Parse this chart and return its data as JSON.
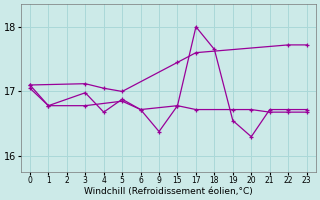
{
  "xlabel": "Windchill (Refroidissement éolien,°C)",
  "bg_color": "#cceae8",
  "line_color": "#990099",
  "grid_color": "#aad8d8",
  "yticks": [
    16,
    17,
    18
  ],
  "xtick_labels": [
    "0",
    "1",
    "2",
    "3",
    "4",
    "5",
    "6",
    "9",
    "15",
    "17",
    "18",
    "19",
    "20",
    "21",
    "22",
    "23"
  ],
  "ylim": [
    15.75,
    18.35
  ],
  "series1": {
    "xi": [
      0,
      1,
      3,
      4,
      5,
      6,
      9,
      15,
      17,
      18,
      19,
      20,
      21,
      22,
      23
    ],
    "y": [
      17.1,
      16.78,
      16.98,
      16.68,
      16.88,
      16.72,
      16.38,
      16.78,
      18.0,
      17.65,
      16.55,
      16.3,
      16.72,
      16.72,
      16.72
    ]
  },
  "series2": {
    "xi": [
      0,
      3,
      4,
      5,
      15,
      17,
      22,
      23
    ],
    "y": [
      17.1,
      17.12,
      17.05,
      17.0,
      17.45,
      17.6,
      17.72,
      17.72
    ]
  },
  "series3": {
    "xi": [
      0,
      1,
      3,
      5,
      6,
      15,
      17,
      19,
      20,
      21,
      22,
      23
    ],
    "y": [
      17.05,
      16.78,
      16.78,
      16.85,
      16.72,
      16.78,
      16.72,
      16.72,
      16.72,
      16.68,
      16.68,
      16.68
    ]
  }
}
